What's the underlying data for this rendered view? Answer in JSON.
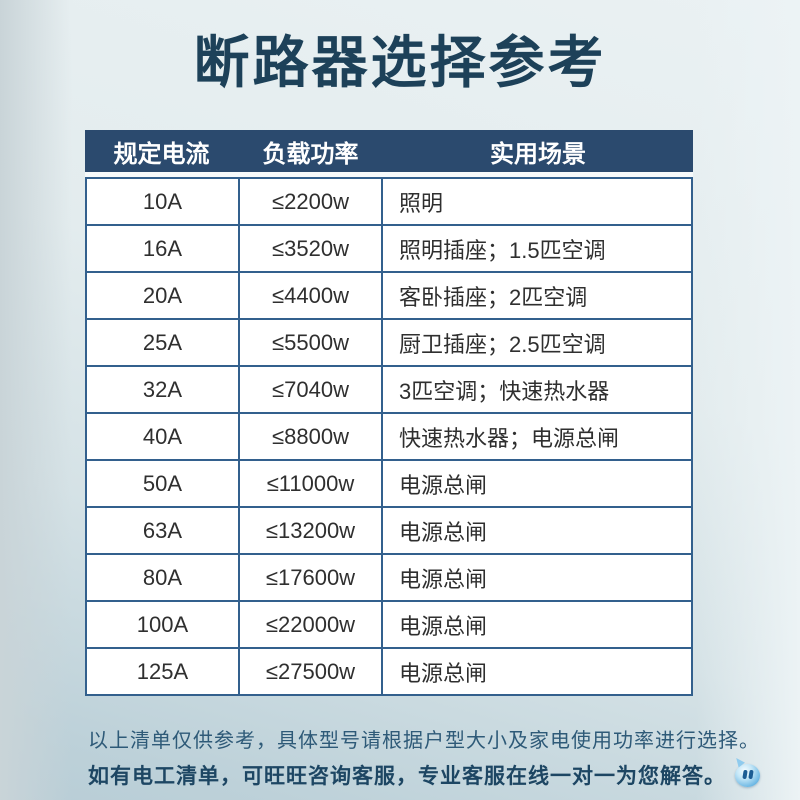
{
  "title": "断路器选择参考",
  "chart_data": {
    "type": "table",
    "title": "断路器选择参考",
    "columns": [
      "规定电流",
      "负载功率",
      "实用场景"
    ],
    "rows": [
      [
        "10A",
        "≤2200w",
        "照明"
      ],
      [
        "16A",
        "≤3520w",
        "照明插座；1.5匹空调"
      ],
      [
        "20A",
        "≤4400w",
        "客卧插座；2匹空调"
      ],
      [
        "25A",
        "≤5500w",
        "厨卫插座；2.5匹空调"
      ],
      [
        "32A",
        "≤7040w",
        "3匹空调；快速热水器"
      ],
      [
        "40A",
        "≤8800w",
        "快速热水器；电源总闸"
      ],
      [
        "50A",
        "≤11000w",
        "电源总闸"
      ],
      [
        "63A",
        "≤13200w",
        "电源总闸"
      ],
      [
        "80A",
        "≤17600w",
        "电源总闸"
      ],
      [
        "100A",
        "≤22000w",
        "电源总闸"
      ],
      [
        "125A",
        "≤27500w",
        "电源总闸"
      ]
    ]
  },
  "notes": {
    "line1": "以上清单仅供参考，具体型号请根据户型大小及家电使用功率进行选择。",
    "line2": "如有电工清单，可旺旺咨询客服，专业客服在线一对一为您解答。"
  },
  "icons": {
    "wangwang": "wangwang-chat-icon"
  },
  "colors": {
    "header_bg": "#2b4a6e",
    "table_border": "#33608d",
    "title_text": "#1d4159",
    "note_text": "#2e5a78",
    "note_bold_text": "#1d4663",
    "cell_text": "#2f2f2f"
  }
}
